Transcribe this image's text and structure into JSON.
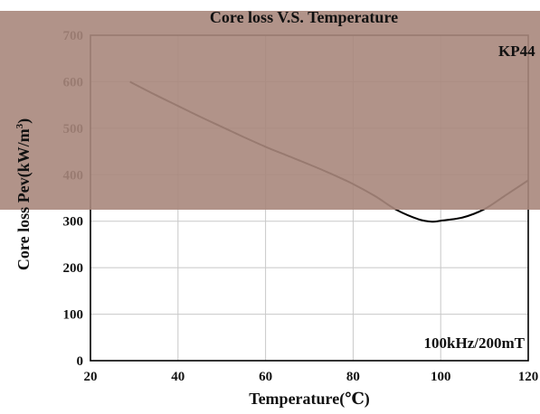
{
  "chart_data": {
    "type": "line",
    "title": "Core loss V.S. Temperature",
    "xlabel": "Temperature(℃)",
    "ylabel": "Core loss Pev(kW/m3)",
    "ylabel_main": "Core loss Pev(kW/m",
    "ylabel_sup": "3",
    "ylabel_close": ")",
    "xlim": [
      20,
      120
    ],
    "ylim": [
      0,
      700
    ],
    "x_ticks": [
      20,
      40,
      60,
      80,
      100,
      120
    ],
    "y_ticks": [
      0,
      100,
      200,
      300,
      400,
      500,
      600,
      700
    ],
    "grid": true,
    "annotations": {
      "material": "KP44",
      "condition": "100kHz/200mT"
    },
    "series": [
      {
        "x": [
          29,
          35,
          40,
          45,
          50,
          55,
          60,
          65,
          70,
          75,
          80,
          85,
          90,
          95,
          98,
          100,
          105,
          110,
          115,
          120
        ],
        "values": [
          600,
          571,
          548,
          525,
          503,
          481,
          460,
          441,
          422,
          402,
          380,
          354,
          324,
          304,
          299,
          301,
          308,
          326,
          357,
          388
        ]
      }
    ],
    "colors": {
      "line": "#000000",
      "grid": "#c8c8c8",
      "overlay": "#a8877c"
    }
  }
}
